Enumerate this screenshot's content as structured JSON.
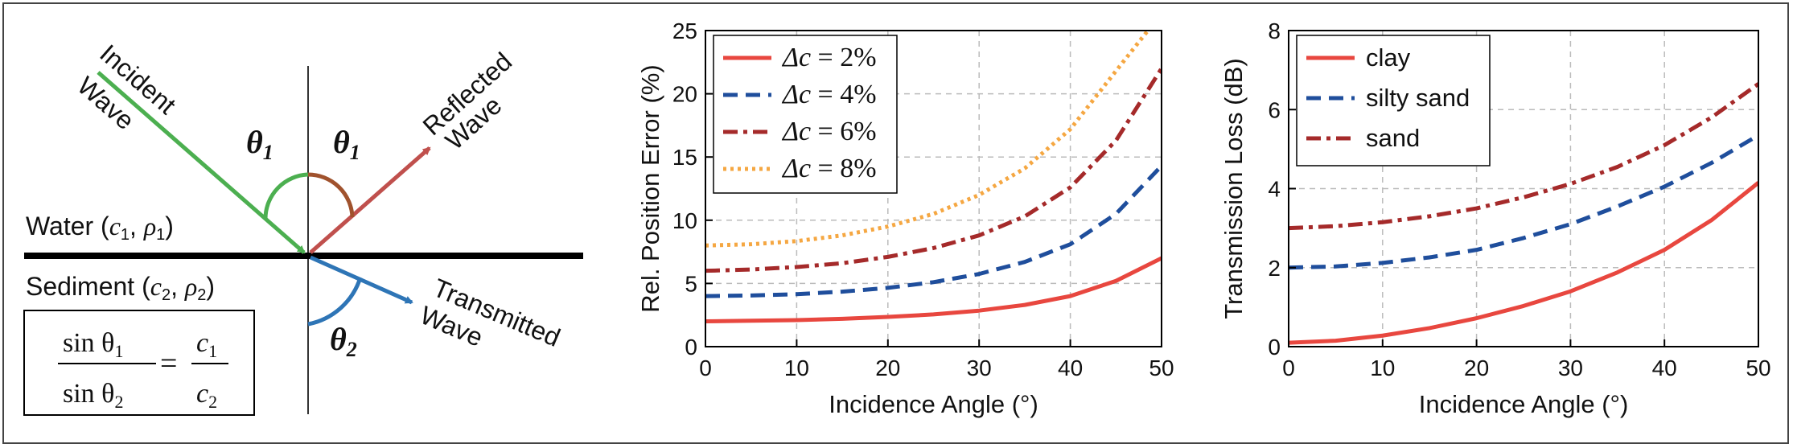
{
  "diagram": {
    "incident_label": [
      "Incident",
      "Wave"
    ],
    "reflected_label": [
      "Reflected",
      "Wave"
    ],
    "transmitted_label": [
      "Transmitted",
      "Wave"
    ],
    "theta1": "θ",
    "theta1_sub": "1",
    "theta2": "θ",
    "theta2_sub": "2",
    "water_label": "Water (",
    "water_c": "c",
    "water_c_sub": "1",
    "water_rho": "ρ",
    "water_rho_sub": "1",
    "sediment_label": "Sediment (",
    "sediment_c": "c",
    "sediment_c_sub": "2",
    "sediment_rho": "ρ",
    "sediment_rho_sub": "2",
    "formula": {
      "num_left": "sin θ",
      "num_left_sub": "1",
      "den_left": "sin θ",
      "den_left_sub": "2",
      "equals": "=",
      "num_right": "c",
      "num_right_sub": "1",
      "den_right": "c",
      "den_right_sub": "2"
    },
    "colors": {
      "incident": "#4caf50",
      "reflected": "#c0504d",
      "transmitted": "#2e75b6",
      "theta1_arc_left": "#4caf50",
      "theta1_arc_right": "#a0522d",
      "theta2_arc": "#2e75b6"
    }
  },
  "chart_data": [
    {
      "type": "line",
      "xlabel": "Incidence Angle (°)",
      "ylabel": "Rel. Position Error (%)",
      "xlim": [
        0,
        50
      ],
      "ylim": [
        0,
        25
      ],
      "xticks": [
        0,
        10,
        20,
        30,
        40,
        50
      ],
      "yticks": [
        0,
        5,
        10,
        15,
        20,
        25
      ],
      "grid": true,
      "legend_position": "top-left",
      "series": [
        {
          "name": "Δc = 2%",
          "legend_lhs": "Δc",
          "legend_rhs": "= 2%",
          "color": "#e8473f",
          "style": "solid",
          "x": [
            0,
            5,
            10,
            15,
            20,
            25,
            30,
            35,
            40,
            45,
            50
          ],
          "y": [
            2.0,
            2.05,
            2.1,
            2.2,
            2.35,
            2.55,
            2.85,
            3.3,
            4.0,
            5.2,
            7.0
          ]
        },
        {
          "name": "Δc = 4%",
          "legend_lhs": "Δc",
          "legend_rhs": "= 4%",
          "color": "#1f4e9c",
          "style": "dashed",
          "x": [
            0,
            5,
            10,
            15,
            20,
            25,
            30,
            35,
            40,
            45,
            50
          ],
          "y": [
            4.0,
            4.05,
            4.15,
            4.35,
            4.65,
            5.1,
            5.75,
            6.7,
            8.1,
            10.5,
            14.3
          ]
        },
        {
          "name": "Δc = 6%",
          "legend_lhs": "Δc",
          "legend_rhs": "= 6%",
          "color": "#a52a2a",
          "style": "dashdot",
          "x": [
            0,
            5,
            10,
            15,
            20,
            25,
            30,
            35,
            40,
            45,
            50
          ],
          "y": [
            6.0,
            6.1,
            6.3,
            6.6,
            7.1,
            7.8,
            8.8,
            10.3,
            12.6,
            16.3,
            22.0
          ]
        },
        {
          "name": "Δc = 8%",
          "legend_lhs": "Δc",
          "legend_rhs": "= 8%",
          "color": "#f5a742",
          "style": "dotted",
          "x": [
            0,
            5,
            10,
            15,
            20,
            25,
            30,
            35,
            40,
            45,
            48.5
          ],
          "y": [
            8.0,
            8.1,
            8.35,
            8.8,
            9.5,
            10.5,
            12.0,
            14.1,
            17.2,
            21.8,
            25.0
          ]
        }
      ]
    },
    {
      "type": "line",
      "xlabel": "Incidence Angle (°)",
      "ylabel": "Transmission Loss (dB)",
      "xlim": [
        0,
        50
      ],
      "ylim": [
        0,
        8
      ],
      "xticks": [
        0,
        10,
        20,
        30,
        40,
        50
      ],
      "yticks": [
        0,
        2,
        4,
        6,
        8
      ],
      "grid": true,
      "legend_position": "top-left",
      "series": [
        {
          "name": "clay",
          "color": "#e8473f",
          "style": "solid",
          "x": [
            0,
            5,
            10,
            15,
            20,
            25,
            30,
            35,
            40,
            45,
            50
          ],
          "y": [
            0.1,
            0.15,
            0.28,
            0.47,
            0.72,
            1.03,
            1.4,
            1.88,
            2.45,
            3.2,
            4.15
          ]
        },
        {
          "name": "silty sand",
          "color": "#1f4e9c",
          "style": "dashed",
          "x": [
            0,
            5,
            10,
            15,
            20,
            25,
            30,
            35,
            40,
            45,
            50
          ],
          "y": [
            2.0,
            2.03,
            2.12,
            2.26,
            2.45,
            2.75,
            3.1,
            3.55,
            4.05,
            4.65,
            5.35
          ]
        },
        {
          "name": "sand",
          "color": "#a52a2a",
          "style": "dashdot",
          "x": [
            0,
            5,
            10,
            15,
            20,
            25,
            30,
            35,
            40,
            45,
            50
          ],
          "y": [
            3.0,
            3.05,
            3.15,
            3.3,
            3.5,
            3.78,
            4.12,
            4.55,
            5.1,
            5.8,
            6.65
          ]
        }
      ]
    }
  ]
}
